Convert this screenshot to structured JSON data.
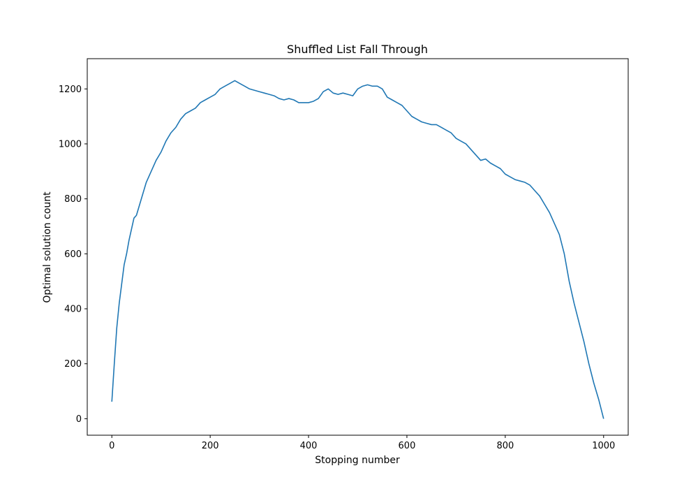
{
  "chart_data": {
    "type": "line",
    "title": "Shuffled List Fall Through",
    "xlabel": "Stopping number",
    "ylabel": "Optimal solution count",
    "xlim": [
      -50,
      1050
    ],
    "ylim": [
      -60,
      1310
    ],
    "xticks": [
      0,
      200,
      400,
      600,
      800,
      1000
    ],
    "yticks": [
      0,
      200,
      400,
      600,
      800,
      1000,
      1200
    ],
    "grid": false,
    "color": "#1f77b4",
    "series": [
      {
        "x": [
          0,
          5,
          10,
          15,
          20,
          25,
          30,
          35,
          40,
          45,
          50,
          60,
          70,
          80,
          90,
          100,
          110,
          120,
          130,
          140,
          150,
          160,
          170,
          180,
          190,
          200,
          210,
          220,
          230,
          240,
          250,
          260,
          270,
          280,
          290,
          300,
          310,
          320,
          330,
          340,
          350,
          360,
          370,
          380,
          390,
          400,
          410,
          420,
          430,
          440,
          450,
          460,
          470,
          480,
          490,
          500,
          510,
          520,
          530,
          540,
          550,
          560,
          570,
          580,
          590,
          600,
          610,
          620,
          630,
          640,
          650,
          660,
          670,
          680,
          690,
          700,
          710,
          720,
          730,
          740,
          750,
          760,
          770,
          780,
          790,
          800,
          810,
          820,
          830,
          840,
          850,
          860,
          870,
          880,
          890,
          900,
          910,
          920,
          930,
          940,
          950,
          960,
          970,
          980,
          990,
          1000
        ],
        "y": [
          62,
          200,
          330,
          420,
          490,
          560,
          600,
          650,
          690,
          730,
          740,
          800,
          860,
          900,
          940,
          970,
          1010,
          1040,
          1060,
          1090,
          1110,
          1120,
          1130,
          1150,
          1160,
          1170,
          1180,
          1200,
          1210,
          1220,
          1230,
          1220,
          1210,
          1200,
          1195,
          1190,
          1185,
          1180,
          1175,
          1165,
          1160,
          1165,
          1160,
          1150,
          1150,
          1150,
          1155,
          1165,
          1190,
          1200,
          1185,
          1180,
          1185,
          1180,
          1175,
          1200,
          1210,
          1215,
          1210,
          1210,
          1200,
          1170,
          1160,
          1150,
          1140,
          1120,
          1100,
          1090,
          1080,
          1075,
          1070,
          1070,
          1060,
          1050,
          1040,
          1020,
          1010,
          1000,
          980,
          960,
          940,
          945,
          930,
          920,
          910,
          890,
          880,
          870,
          865,
          860,
          850,
          830,
          810,
          780,
          750,
          710,
          670,
          600,
          500,
          420,
          350,
          280,
          200,
          130,
          70,
          0
        ]
      }
    ]
  }
}
